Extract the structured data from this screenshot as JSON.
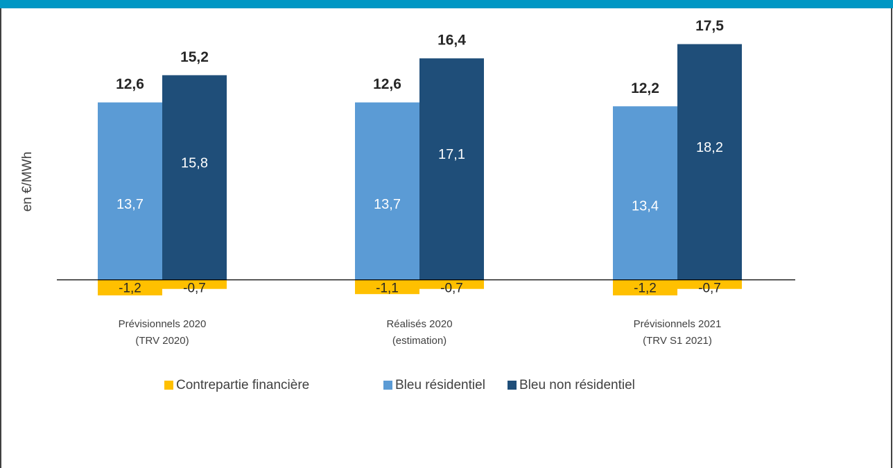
{
  "chart_data": {
    "type": "bar",
    "ylabel": "en €/MWh",
    "categories": [
      "Prévisionnels 2020\n(TRV 2020)",
      "Réalisés 2020\n(estimation)",
      "Prévisionnels 2021\n(TRV S1 2021)"
    ],
    "series": [
      {
        "name": "Contrepartie financière",
        "color": "#ffc000",
        "values": [
          [
            -1.2,
            -0.7
          ],
          [
            -1.1,
            -0.7
          ],
          [
            -1.2,
            -0.7
          ]
        ],
        "value_labels": [
          [
            "-1,2",
            "-0,7"
          ],
          [
            "-1,1",
            "-0,7"
          ],
          [
            "-1,2",
            "-0,7"
          ]
        ]
      },
      {
        "name": "Bleu résidentiel",
        "color": "#5b9bd5",
        "values": [
          13.7,
          13.7,
          13.4
        ],
        "value_labels": [
          "13,7",
          "13,7",
          "13,4"
        ]
      },
      {
        "name": "Bleu non résidentiel",
        "color": "#1f4e79",
        "values": [
          15.8,
          17.1,
          18.2
        ],
        "value_labels": [
          "15,8",
          "17,1",
          "18,2"
        ]
      }
    ],
    "totals": {
      "values": [
        [
          12.6,
          15.2
        ],
        [
          12.6,
          16.4
        ],
        [
          12.2,
          17.5
        ]
      ],
      "value_labels": [
        [
          "12,6",
          "15,2"
        ],
        [
          "12,6",
          "16,4"
        ],
        [
          "12,2",
          "17,5"
        ]
      ]
    },
    "ylim": [
      -2,
      20
    ]
  }
}
